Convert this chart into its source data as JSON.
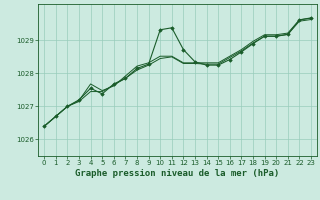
{
  "title": "Graphe pression niveau de la mer (hPa)",
  "background_color": "#cceae0",
  "grid_color": "#99ccbb",
  "line_color": "#1a5c2a",
  "marker_color": "#1a5c2a",
  "xlim": [
    -0.5,
    23.5
  ],
  "ylim": [
    1025.5,
    1030.1
  ],
  "yticks": [
    1026,
    1027,
    1028,
    1029
  ],
  "xticks": [
    0,
    1,
    2,
    3,
    4,
    5,
    6,
    7,
    8,
    9,
    10,
    11,
    12,
    13,
    14,
    15,
    16,
    17,
    18,
    19,
    20,
    21,
    22,
    23
  ],
  "series_bg1": [
    1026.4,
    1026.7,
    1027.0,
    1027.15,
    1027.45,
    1027.45,
    1027.65,
    1027.85,
    1028.1,
    1028.25,
    1028.45,
    1028.5,
    1028.3,
    1028.3,
    1028.28,
    1028.28,
    1028.48,
    1028.68,
    1028.92,
    1029.12,
    1029.12,
    1029.18,
    1029.58,
    1029.63
  ],
  "series_bg2": [
    1026.4,
    1026.7,
    1027.0,
    1027.18,
    1027.68,
    1027.48,
    1027.62,
    1027.92,
    1028.22,
    1028.32,
    1028.52,
    1028.52,
    1028.32,
    1028.32,
    1028.32,
    1028.32,
    1028.52,
    1028.72,
    1028.97,
    1029.17,
    1029.17,
    1029.22,
    1029.62,
    1029.67
  ],
  "series_main": [
    1026.4,
    1026.7,
    1027.0,
    1027.2,
    1027.55,
    1027.38,
    1027.68,
    1027.85,
    1028.15,
    1028.28,
    1029.32,
    1029.38,
    1028.72,
    1028.35,
    1028.25,
    1028.25,
    1028.42,
    1028.65,
    1028.9,
    1029.13,
    1029.13,
    1029.18,
    1029.62,
    1029.68
  ],
  "title_color": "#1a5c2a",
  "title_fontsize": 6.5,
  "axis_color": "#1a5c2a",
  "tick_fontsize": 5.0
}
